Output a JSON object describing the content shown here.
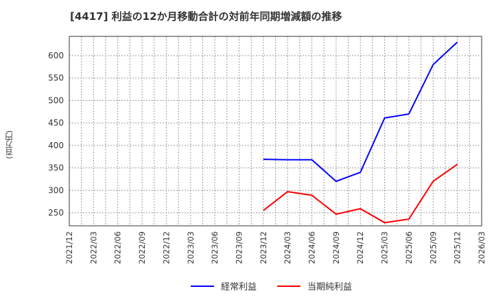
{
  "chart_data": {
    "type": "line",
    "title": "[4417]  利益の12か月移動合計の対前年同期増減額の推移",
    "xlabel": "",
    "ylabel": "(百万円)",
    "ylim": [
      215,
      645
    ],
    "yticks": [
      250,
      300,
      350,
      400,
      450,
      500,
      550,
      600
    ],
    "grid": true,
    "legend_position": "bottom",
    "categories": [
      "2021/12",
      "2022/03",
      "2022/06",
      "2022/09",
      "2022/12",
      "2023/03",
      "2023/06",
      "2023/09",
      "2023/12",
      "2024/03",
      "2024/06",
      "2024/09",
      "2024/12",
      "2025/03",
      "2025/06",
      "2025/09",
      "2025/12",
      "2026/03"
    ],
    "series": [
      {
        "name": "経常利益",
        "color": "#0000ff",
        "values": [
          null,
          null,
          null,
          null,
          null,
          null,
          null,
          null,
          369,
          368,
          368,
          320,
          340,
          461,
          470,
          580,
          630,
          null
        ]
      },
      {
        "name": "当期純利益",
        "color": "#ff0000",
        "values": [
          null,
          null,
          null,
          null,
          null,
          null,
          null,
          null,
          255,
          297,
          289,
          247,
          259,
          228,
          236,
          320,
          358,
          null
        ]
      }
    ]
  },
  "legend": {
    "items": [
      {
        "label": "経常利益",
        "color": "#0000ff"
      },
      {
        "label": "当期純利益",
        "color": "#ff0000"
      }
    ]
  }
}
